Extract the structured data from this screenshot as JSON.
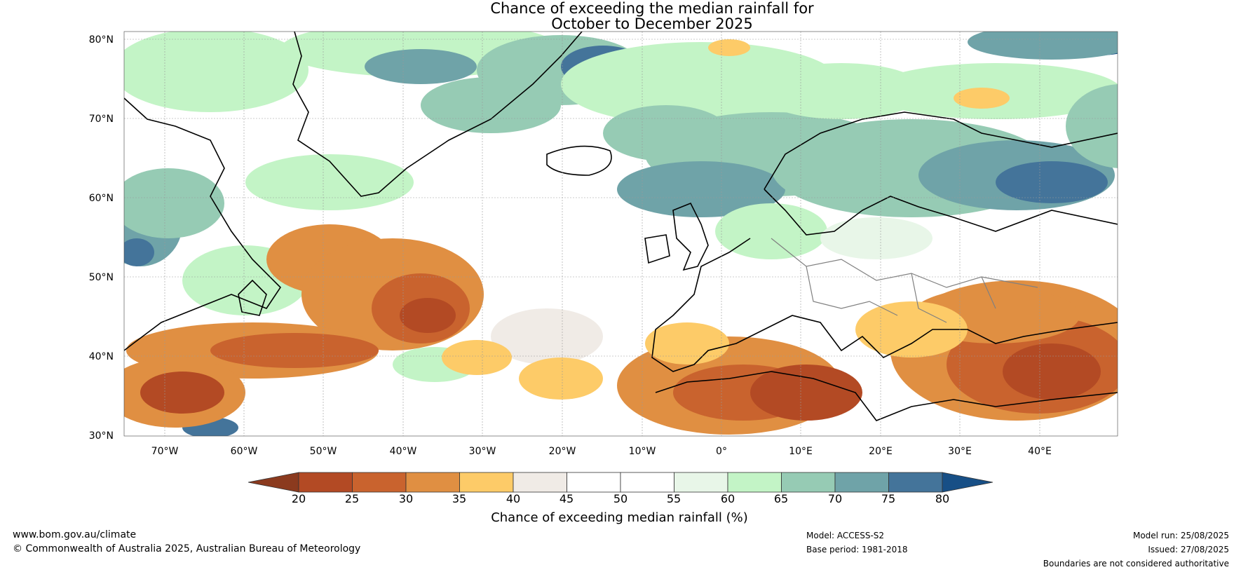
{
  "title": {
    "line1": "Chance of exceeding the median rainfall for",
    "line2": "October to December 2025"
  },
  "map": {
    "lat_labels": [
      "80°N",
      "70°N",
      "60°N",
      "50°N",
      "40°N",
      "30°N"
    ],
    "lon_labels": [
      "70°W",
      "60°W",
      "50°W",
      "40°W",
      "30°W",
      "20°W",
      "10°W",
      "0°",
      "10°E",
      "20°E",
      "30°E",
      "40°E"
    ]
  },
  "colorbar": {
    "ticks": [
      "20",
      "25",
      "30",
      "35",
      "40",
      "45",
      "50",
      "55",
      "60",
      "65",
      "70",
      "75",
      "80"
    ],
    "colors": [
      "#8b3a1e",
      "#b34a24",
      "#c9632e",
      "#e08f42",
      "#fdcb68",
      "#f0ebe6",
      "#ffffff",
      "#ffffff",
      "#e8f6e8",
      "#c3f4c6",
      "#96cbb4",
      "#6fa3a8",
      "#44749a",
      "#174f86"
    ],
    "label": "Chance of exceeding median rainfall (%)"
  },
  "footer": {
    "website": "www.bom.gov.au/climate",
    "copyright": "© Commonwealth of Australia 2025, Australian Bureau of Meteorology",
    "model": "Model: ACCESS-S2",
    "base_period": "Base period: 1981-2018",
    "model_run": "Model run: 25/08/2025",
    "issued": "Issued: 27/08/2025",
    "disclaimer": "Boundaries are not considered authoritative"
  }
}
